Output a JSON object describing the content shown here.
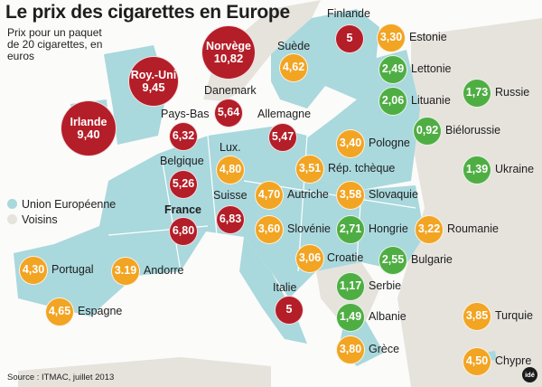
{
  "title": "Le prix des cigarettes en Europe",
  "subtitle": "Prix pour un paquet de 20 cigarettes, en euros",
  "legend": [
    {
      "label": "Union Européenne",
      "color": "#a9d8dd"
    },
    {
      "label": "Voisins",
      "color": "#e6e3dd"
    }
  ],
  "source": "Source : ITMAC, juillet 2013",
  "logo": "idé",
  "colors": {
    "red": "#b41e28",
    "orange": "#f2a423",
    "green": "#4fae43",
    "eu_land": "#a9d8dd",
    "neighbor_land": "#e6e3dd",
    "sea": "#fbfbfa"
  },
  "countries": [
    {
      "id": "irlande",
      "name": "Irlande",
      "price": "9,40",
      "tier": "red",
      "label_inside": true
    },
    {
      "id": "roy-uni",
      "name": "Roy.-Uni",
      "price": "9,45",
      "tier": "red",
      "label_inside": true
    },
    {
      "id": "norvege",
      "name": "Norvège",
      "price": "10,82",
      "tier": "red",
      "label_inside": true
    },
    {
      "id": "finlande",
      "name": "Finlande",
      "price": "5",
      "tier": "red",
      "label_inside": false
    },
    {
      "id": "suede",
      "name": "Suède",
      "price": "4,62",
      "tier": "orange",
      "label_inside": false
    },
    {
      "id": "estonie",
      "name": "Estonie",
      "price": "3,30",
      "tier": "orange",
      "label_inside": false
    },
    {
      "id": "lettonie",
      "name": "Lettonie",
      "price": "2,49",
      "tier": "green",
      "label_inside": false
    },
    {
      "id": "lituanie",
      "name": "Lituanie",
      "price": "2,06",
      "tier": "green",
      "label_inside": false
    },
    {
      "id": "russie",
      "name": "Russie",
      "price": "1,73",
      "tier": "green",
      "label_inside": false
    },
    {
      "id": "bielorussie",
      "name": "Biélorussie",
      "price": "0,92",
      "tier": "green",
      "label_inside": false
    },
    {
      "id": "danemark",
      "name": "Danemark",
      "price": "5,64",
      "tier": "red",
      "label_inside": false
    },
    {
      "id": "pays-bas",
      "name": "Pays-Bas",
      "price": "6,32",
      "tier": "red",
      "label_inside": false
    },
    {
      "id": "allemagne",
      "name": "Allemagne",
      "price": "5,47",
      "tier": "red",
      "label_inside": false
    },
    {
      "id": "pologne",
      "name": "Pologne",
      "price": "3,40",
      "tier": "orange",
      "label_inside": false
    },
    {
      "id": "ukraine",
      "name": "Ukraine",
      "price": "1,39",
      "tier": "green",
      "label_inside": false
    },
    {
      "id": "lux",
      "name": "Lux.",
      "price": "4,80",
      "tier": "orange",
      "label_inside": false
    },
    {
      "id": "belgique",
      "name": "Belgique",
      "price": "5,26",
      "tier": "red",
      "label_inside": false
    },
    {
      "id": "rep-tcheque",
      "name": "Rép. tchèque",
      "price": "3,51",
      "tier": "orange",
      "label_inside": false
    },
    {
      "id": "autriche",
      "name": "Autriche",
      "price": "4,70",
      "tier": "orange",
      "label_inside": false
    },
    {
      "id": "slovaquie",
      "name": "Slovaquie",
      "price": "3,58",
      "tier": "orange",
      "label_inside": false
    },
    {
      "id": "suisse",
      "name": "Suisse",
      "price": "6,83",
      "tier": "red",
      "label_inside": false
    },
    {
      "id": "france",
      "name": "France",
      "price": "6,80",
      "tier": "red",
      "label_inside": false
    },
    {
      "id": "slovenie",
      "name": "Slovénie",
      "price": "3,60",
      "tier": "orange",
      "label_inside": false
    },
    {
      "id": "hongrie",
      "name": "Hongrie",
      "price": "2,71",
      "tier": "green",
      "label_inside": false
    },
    {
      "id": "roumanie",
      "name": "Roumanie",
      "price": "3,22",
      "tier": "orange",
      "label_inside": false
    },
    {
      "id": "croatie",
      "name": "Croatie",
      "price": "3,06",
      "tier": "orange",
      "label_inside": false
    },
    {
      "id": "bulgarie",
      "name": "Bulgarie",
      "price": "2,55",
      "tier": "green",
      "label_inside": false
    },
    {
      "id": "portugal",
      "name": "Portugal",
      "price": "4,30",
      "tier": "orange",
      "label_inside": false
    },
    {
      "id": "andorre",
      "name": "Andorre",
      "price": "3.19",
      "tier": "orange",
      "label_inside": false
    },
    {
      "id": "serbie",
      "name": "Serbie",
      "price": "1,17",
      "tier": "green",
      "label_inside": false
    },
    {
      "id": "espagne",
      "name": "Espagne",
      "price": "4,65",
      "tier": "orange",
      "label_inside": false
    },
    {
      "id": "italie",
      "name": "Italie",
      "price": "5",
      "tier": "red",
      "label_inside": false
    },
    {
      "id": "albanie",
      "name": "Albanie",
      "price": "1,49",
      "tier": "green",
      "label_inside": false
    },
    {
      "id": "turquie",
      "name": "Turquie",
      "price": "3,85",
      "tier": "orange",
      "label_inside": false
    },
    {
      "id": "grece",
      "name": "Grèce",
      "price": "3,80",
      "tier": "orange",
      "label_inside": false
    },
    {
      "id": "chypre",
      "name": "Chypre",
      "price": "4,50",
      "tier": "orange",
      "label_inside": false
    }
  ]
}
